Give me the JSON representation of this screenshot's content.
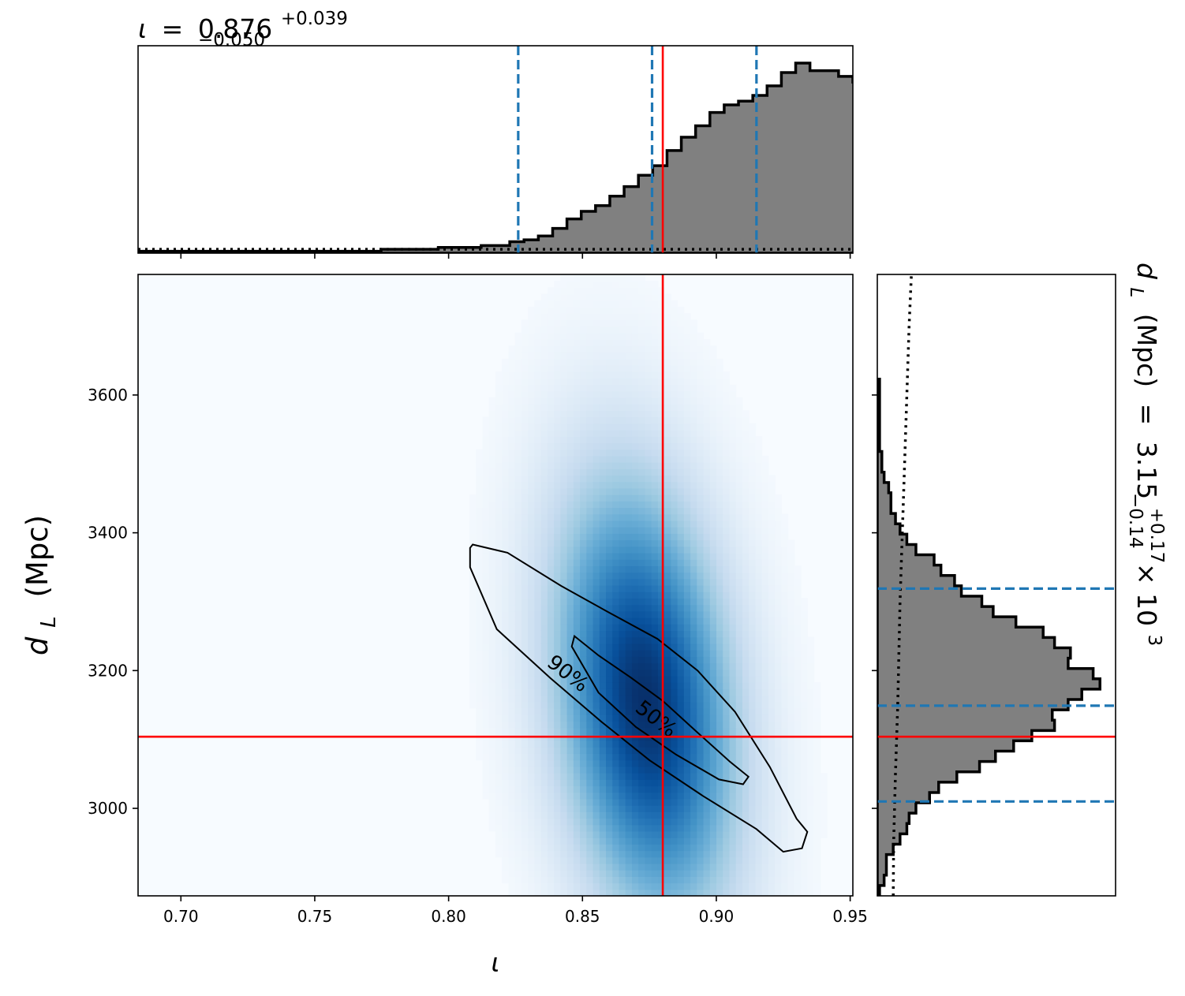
{
  "chart_data": {
    "type": "corner",
    "colors": {
      "truth": "#ff0000",
      "quantile": "#1f77b4",
      "hist_fill": "#808080",
      "hist_edge": "#000000",
      "density": "Blues"
    },
    "top_title": {
      "param": "ι",
      "eq": "=",
      "value": "0.876",
      "plus": "+0.039",
      "minus": "−0.050"
    },
    "right_title": {
      "param": "d",
      "sub": "L",
      "unit": "(Mpc)",
      "eq": "=",
      "value": "3.15",
      "plus": "+0.17",
      "minus": "−0.14",
      "times": "× 10",
      "exp": "3"
    },
    "xlabel": "ι",
    "ylabel": {
      "main": "d",
      "sub": "L",
      "unit": "(Mpc)"
    },
    "xlim": [
      0.684,
      0.951
    ],
    "ylim": [
      2873,
      3775
    ],
    "xticks": [
      "0.70",
      "0.75",
      "0.80",
      "0.85",
      "0.90",
      "0.95"
    ],
    "xtick_values": [
      0.7,
      0.75,
      0.8,
      0.85,
      0.9,
      0.95
    ],
    "yticks": [
      "3000",
      "3200",
      "3400",
      "3600"
    ],
    "ytick_values": [
      3000,
      3200,
      3400,
      3600
    ],
    "truth": {
      "x": 0.88,
      "y": 3104
    },
    "x_quantiles": [
      0.826,
      0.876,
      0.915
    ],
    "y_quantiles": [
      3010,
      3149,
      3319
    ],
    "x_hist": {
      "edges_start": 0.684,
      "bin_width": 0.00534,
      "counts": [
        0.01,
        0.01,
        0.01,
        0.01,
        0.01,
        0.01,
        0.01,
        0.01,
        0.01,
        0.01,
        0.01,
        0.01,
        0.01,
        0.01,
        0.01,
        0.01,
        0.01,
        0.02,
        0.02,
        0.02,
        0.02,
        0.03,
        0.03,
        0.03,
        0.04,
        0.04,
        0.06,
        0.07,
        0.09,
        0.13,
        0.18,
        0.22,
        0.25,
        0.3,
        0.35,
        0.41,
        0.46,
        0.54,
        0.61,
        0.67,
        0.74,
        0.78,
        0.8,
        0.83,
        0.88,
        0.95,
        1.0,
        0.96,
        0.96,
        0.93,
        0.9,
        0.88,
        0.82,
        0.73,
        0.6,
        0.55,
        0.47,
        0.4,
        0.32,
        0.23,
        0.17,
        0.1,
        0.04,
        0.03,
        0.02,
        0.01,
        0.01,
        0.01,
        0.01,
        0.01
      ]
    },
    "x_prior": 0.02,
    "y_hist": {
      "edges_start": 2873,
      "bin_width": 15,
      "counts": [
        0.01,
        0.03,
        0.04,
        0.04,
        0.07,
        0.1,
        0.13,
        0.14,
        0.17,
        0.23,
        0.27,
        0.35,
        0.45,
        0.52,
        0.6,
        0.68,
        0.78,
        0.77,
        0.84,
        0.9,
        0.98,
        0.95,
        0.84,
        0.85,
        0.78,
        0.73,
        0.61,
        0.51,
        0.46,
        0.37,
        0.34,
        0.28,
        0.25,
        0.17,
        0.13,
        0.1,
        0.08,
        0.06,
        0.06,
        0.05,
        0.03,
        0.02,
        0.02,
        0.01,
        0.01,
        0.01,
        0.01,
        0.01,
        0.01,
        0.01
      ],
      "max_ref": 1.0
    },
    "y_prior": [
      [
        2873,
        0.07
      ],
      [
        2950,
        0.072
      ],
      [
        3050,
        0.08
      ],
      [
        3150,
        0.09
      ],
      [
        3300,
        0.1
      ],
      [
        3500,
        0.12
      ],
      [
        3700,
        0.14
      ],
      [
        3775,
        0.15
      ]
    ],
    "density": {
      "center": [
        0.8735,
        3155
      ],
      "slope": -2250,
      "sigma_along": 0.022,
      "sigma_perp": 9.0
    },
    "contours": [
      {
        "label": "50%",
        "level": 0.5,
        "points": [
          [
            0.847,
            3250
          ],
          [
            0.856,
            3222
          ],
          [
            0.868,
            3190
          ],
          [
            0.88,
            3156
          ],
          [
            0.893,
            3110
          ],
          [
            0.905,
            3068
          ],
          [
            0.912,
            3046
          ],
          [
            0.91,
            3035
          ],
          [
            0.901,
            3042
          ],
          [
            0.885,
            3078
          ],
          [
            0.87,
            3118
          ],
          [
            0.856,
            3168
          ],
          [
            0.846,
            3235
          ]
        ]
      },
      {
        "label": "90%",
        "level": 0.9,
        "points": [
          [
            0.809,
            3383
          ],
          [
            0.822,
            3371
          ],
          [
            0.842,
            3323
          ],
          [
            0.86,
            3284
          ],
          [
            0.878,
            3246
          ],
          [
            0.893,
            3200
          ],
          [
            0.907,
            3140
          ],
          [
            0.92,
            3060
          ],
          [
            0.93,
            2985
          ],
          [
            0.934,
            2966
          ],
          [
            0.932,
            2942
          ],
          [
            0.925,
            2937
          ],
          [
            0.915,
            2970
          ],
          [
            0.895,
            3018
          ],
          [
            0.875,
            3070
          ],
          [
            0.857,
            3126
          ],
          [
            0.838,
            3189
          ],
          [
            0.818,
            3260
          ],
          [
            0.808,
            3350
          ],
          [
            0.808,
            3378
          ]
        ]
      }
    ]
  }
}
